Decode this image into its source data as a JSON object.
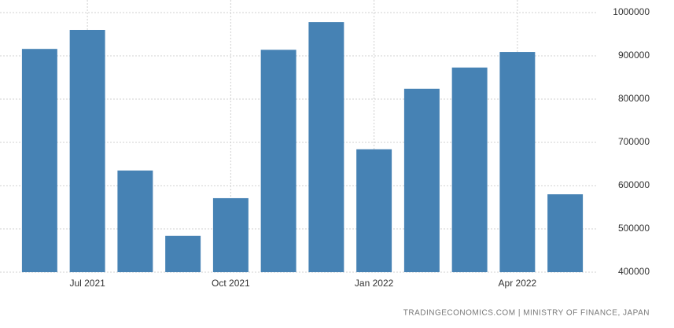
{
  "chart_data": {
    "type": "bar",
    "categories": [
      null,
      "Jul 2021",
      null,
      null,
      "Oct 2021",
      null,
      null,
      "Jan 2022",
      null,
      null,
      "Apr 2022",
      null
    ],
    "values": [
      916000,
      960000,
      635000,
      484000,
      571000,
      914000,
      978000,
      684000,
      824000,
      873000,
      909000,
      580000
    ],
    "color": "#4682b4",
    "ylim": [
      400000,
      1000000
    ],
    "yticks": [
      400000,
      500000,
      600000,
      700000,
      800000,
      900000,
      1000000
    ],
    "grid": true,
    "source": "TRADINGECONOMICS.COM | MINISTRY OF FINANCE, JAPAN"
  }
}
